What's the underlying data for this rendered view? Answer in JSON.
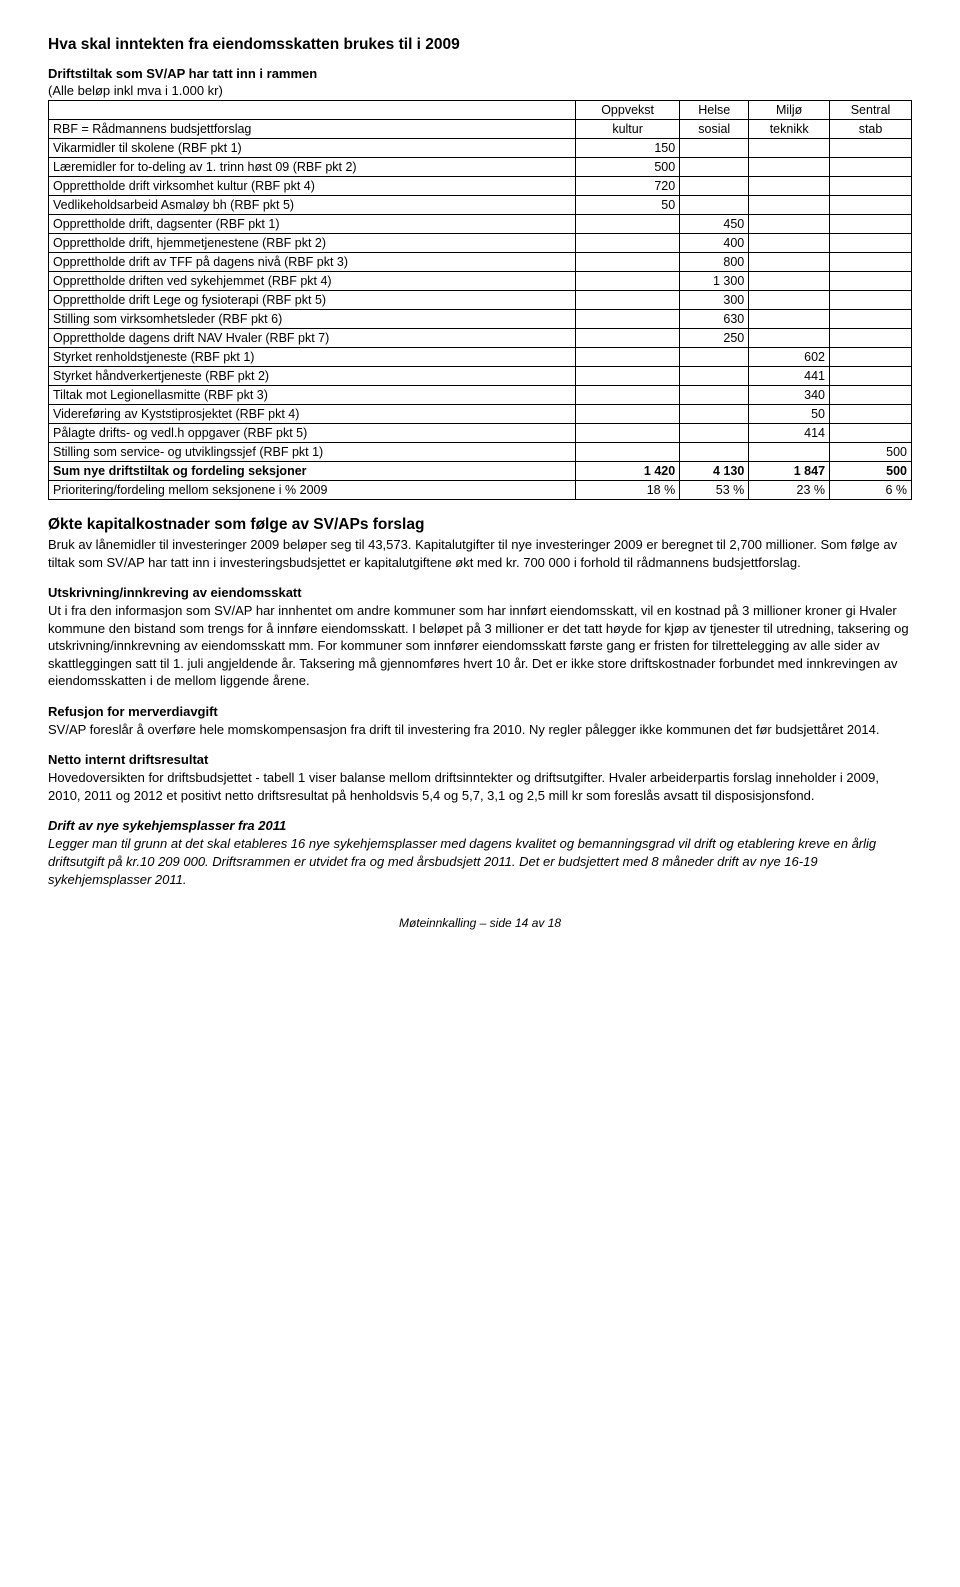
{
  "page": {
    "title": "Hva skal inntekten fra eiendomsskatten brukes til i 2009",
    "subtitle": "Driftstiltak som SV/AP har tatt inn i rammen",
    "note": "(Alle beløp inkl mva i 1.000 kr)",
    "footer": "Møteinnkalling – side 14 av 18"
  },
  "table": {
    "header": {
      "col0a": "",
      "col0b": "RBF = Rådmannens budsjettforslag",
      "c1a": "Oppvekst",
      "c1b": "kultur",
      "c2a": "Helse",
      "c2b": "sosial",
      "c3a": "Miljø",
      "c3b": "teknikk",
      "c4a": "Sentral",
      "c4b": "stab"
    },
    "rows": [
      {
        "label": "Vikarmidler til skolene (RBF pkt 1)",
        "c1": "150",
        "c2": "",
        "c3": "",
        "c4": ""
      },
      {
        "label": "Læremidler for to-deling av 1. trinn høst 09 (RBF pkt 2)",
        "c1": "500",
        "c2": "",
        "c3": "",
        "c4": ""
      },
      {
        "label": "Opprettholde drift virksomhet kultur (RBF pkt 4)",
        "c1": "720",
        "c2": "",
        "c3": "",
        "c4": ""
      },
      {
        "label": "Vedlikeholdsarbeid Asmaløy bh (RBF pkt 5)",
        "c1": "50",
        "c2": "",
        "c3": "",
        "c4": ""
      },
      {
        "label": "Opprettholde drift, dagsenter (RBF pkt 1)",
        "c1": "",
        "c2": "450",
        "c3": "",
        "c4": ""
      },
      {
        "label": "Opprettholde drift, hjemmetjenestene (RBF pkt 2)",
        "c1": "",
        "c2": "400",
        "c3": "",
        "c4": ""
      },
      {
        "label": "Opprettholde drift av TFF på dagens nivå (RBF pkt 3)",
        "c1": "",
        "c2": "800",
        "c3": "",
        "c4": ""
      },
      {
        "label": "Opprettholde driften ved sykehjemmet (RBF pkt 4)",
        "c1": "",
        "c2": "1 300",
        "c3": "",
        "c4": ""
      },
      {
        "label": "Opprettholde drift Lege og fysioterapi (RBF pkt 5)",
        "c1": "",
        "c2": "300",
        "c3": "",
        "c4": ""
      },
      {
        "label": "Stilling som virksomhetsleder (RBF pkt 6)",
        "c1": "",
        "c2": "630",
        "c3": "",
        "c4": ""
      },
      {
        "label": "Opprettholde dagens drift NAV Hvaler (RBF pkt 7)",
        "c1": "",
        "c2": "250",
        "c3": "",
        "c4": ""
      },
      {
        "label": "Styrket renholdstjeneste (RBF pkt 1)",
        "c1": "",
        "c2": "",
        "c3": "602",
        "c4": ""
      },
      {
        "label": "Styrket håndverkertjeneste (RBF pkt 2)",
        "c1": "",
        "c2": "",
        "c3": "441",
        "c4": ""
      },
      {
        "label": "Tiltak mot Legionellasmitte (RBF pkt 3)",
        "c1": "",
        "c2": "",
        "c3": "340",
        "c4": ""
      },
      {
        "label": "Videreføring av Kyststiprosjektet (RBF pkt 4)",
        "c1": "",
        "c2": "",
        "c3": "50",
        "c4": ""
      },
      {
        "label": "Pålagte drifts- og vedl.h oppgaver (RBF pkt 5)",
        "c1": "",
        "c2": "",
        "c3": "414",
        "c4": ""
      },
      {
        "label": "Stilling som service- og utviklingssjef (RBF pkt 1)",
        "c1": "",
        "c2": "",
        "c3": "",
        "c4": "500"
      }
    ],
    "sum": {
      "label": "Sum nye driftstiltak og fordeling seksjoner",
      "c1": "1 420",
      "c2": "4 130",
      "c3": "1 847",
      "c4": "500"
    },
    "prio": {
      "label": "Prioritering/fordeling mellom seksjonene i % 2009",
      "c1": "18 %",
      "c2": "53 %",
      "c3": "23 %",
      "c4": "6 %"
    }
  },
  "sections": {
    "s1_head": "Økte kapitalkostnader som følge av SV/APs forslag",
    "s1_body": "Bruk av lånemidler til investeringer 2009 beløper seg til 43,573. Kapitalutgifter til nye investeringer 2009 er beregnet til 2,700 millioner. Som følge av tiltak som SV/AP har tatt inn i investeringsbudsjettet er kapitalutgiftene økt med kr. 700 000 i forhold til rådmannens budsjettforslag.",
    "s2_head": "Utskrivning/innkreving av eiendomsskatt",
    "s2_body": "Ut i fra den informasjon som SV/AP har innhentet om andre kommuner som har innført eiendomsskatt, vil en kostnad på 3 millioner kroner gi Hvaler kommune den bistand som trengs for å innføre eiendomsskatt. I beløpet på 3 millioner er det tatt høyde for kjøp av tjenester til utredning, taksering og utskrivning/innkrevning av eiendomsskatt mm. For kommuner som innfører eiendomsskatt første gang er fristen for tilrettelegging av alle sider av skattleggingen satt til 1. juli angjeldende år. Taksering må gjennomføres hvert 10 år. Det er ikke store driftskostnader forbundet med innkrevingen av eiendomsskatten i de mellom liggende årene.",
    "s3_head": "Refusjon for merverdiavgift",
    "s3_body": "SV/AP foreslår å overføre hele momskompensasjon fra drift til investering fra 2010. Ny regler pålegger ikke kommunen det før budsjettåret 2014.",
    "s4_head": "Netto internt driftsresultat",
    "s4_body": "Hovedoversikten for driftsbudsjettet - tabell 1 viser balanse mellom driftsinntekter og driftsutgifter. Hvaler arbeiderpartis forslag inneholder i 2009, 2010, 2011 og 2012 et positivt netto driftsresultat på henholdsvis 5,4 og 5,7, 3,1 og 2,5 mill kr som foreslås avsatt til disposisjonsfond.",
    "s5_head": "Drift av nye sykehjemsplasser fra 2011",
    "s5_body": "Legger man til grunn at det skal etableres 16 nye sykehjemsplasser med dagens kvalitet og bemanningsgrad vil drift og etablering kreve en årlig driftsutgift på kr.10 209 000. Driftsrammen er utvidet fra og med årsbudsjett 2011. Det er budsjettert med 8 måneder drift av nye 16-19 sykehjemsplasser 2011."
  }
}
